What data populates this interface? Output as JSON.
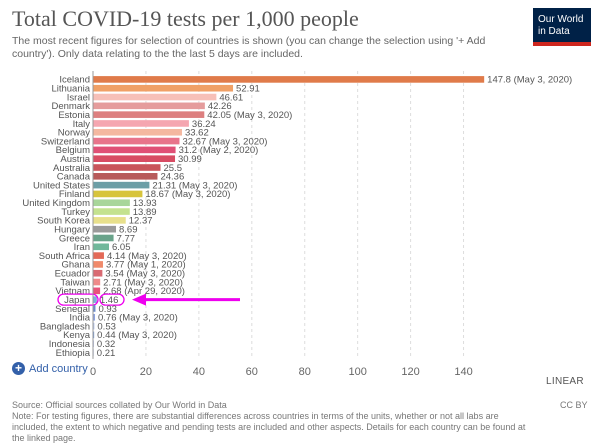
{
  "header": {
    "title": "Total COVID-19 tests per 1,000 people",
    "subtitle": "The most recent figures for selection of countries is shown (you can change the selection using '+ Add country'). Only data relating to the the last 5 days are included.",
    "logo_line1": "Our World",
    "logo_line2": "in Data"
  },
  "controls": {
    "add_country_icon": "plus-icon",
    "add_country_label": "Add country",
    "scale_toggle_label": "LINEAR"
  },
  "footer": {
    "source": "Source: Official sources collated by Our World in Data",
    "note": "Note: For testing figures, there are substantial differences across countries in terms of the units, whether or not all labs are included, the extent to which negative and pending tests are included and other aspects. Details for each country can be found at the linked page.",
    "license": "CC BY"
  },
  "annotation": {
    "highlighted_category": "Japan",
    "highlight_color": "#ee00ee"
  },
  "chart_data": {
    "type": "bar",
    "orientation": "horizontal",
    "xlim": [
      0,
      150
    ],
    "xticks": [
      0,
      20,
      40,
      60,
      80,
      100,
      120,
      140
    ],
    "grid": true,
    "categories": [
      "Iceland",
      "Lithuania",
      "Israel",
      "Denmark",
      "Estonia",
      "Italy",
      "Norway",
      "Switzerland",
      "Belgium",
      "Austria",
      "Australia",
      "Canada",
      "United States",
      "Finland",
      "United Kingdom",
      "Turkey",
      "South Korea",
      "Hungary",
      "Greece",
      "Iran",
      "South Africa",
      "Ghana",
      "Ecuador",
      "Taiwan",
      "Vietnam",
      "Japan",
      "Senegal",
      "India",
      "Bangladesh",
      "Kenya",
      "Indonesia",
      "Ethiopia"
    ],
    "values": [
      147.8,
      52.91,
      46.61,
      42.26,
      42.05,
      36.24,
      33.62,
      32.67,
      31.2,
      30.99,
      25.5,
      24.36,
      21.31,
      18.67,
      13.93,
      13.89,
      12.37,
      8.69,
      7.77,
      6.05,
      4.14,
      3.77,
      3.54,
      2.71,
      2.68,
      1.46,
      0.93,
      0.76,
      0.53,
      0.44,
      0.32,
      0.21
    ],
    "labels": [
      "147.8 (May 3, 2020)",
      "52.91",
      "46.61",
      "42.26",
      "42.05 (May 3, 2020)",
      "36.24",
      "33.62",
      "32.67 (May 3, 2020)",
      "31.2 (May 2, 2020)",
      "30.99",
      "25.5",
      "24.36",
      "21.31 (May 3, 2020)",
      "18.67 (May 3, 2020)",
      "13.93",
      "13.89",
      "12.37",
      "8.69",
      "7.77",
      "6.05",
      "4.14 (May 3, 2020)",
      "3.77 (May 1, 2020)",
      "3.54 (May 3, 2020)",
      "2.71 (May 3, 2020)",
      "2.68 (Apr 29, 2020)",
      "1.46",
      "0.93",
      "0.76 (May 3, 2020)",
      "0.53",
      "0.44 (May 3, 2020)",
      "0.32",
      "0.21"
    ],
    "colors": [
      "#e07b4a",
      "#f0a066",
      "#f7c0b8",
      "#e59c9c",
      "#dd7f7f",
      "#f5a6b0",
      "#f4b8a0",
      "#e8748b",
      "#e05076",
      "#d84c63",
      "#c9545a",
      "#b85a5a",
      "#6b9ea6",
      "#d7c43c",
      "#a8d69a",
      "#c4e28f",
      "#e8e08c",
      "#9a9a9a",
      "#69a38a",
      "#70b89b",
      "#e36a58",
      "#f08a6b",
      "#d96a72",
      "#ef8a8a",
      "#e8547a",
      "#7fb0d8",
      "#6b8ac9",
      "#8fa4e0",
      "#b8c6ec",
      "#7ea0d8",
      "#a8b6e6",
      "#c7d2ef"
    ]
  }
}
